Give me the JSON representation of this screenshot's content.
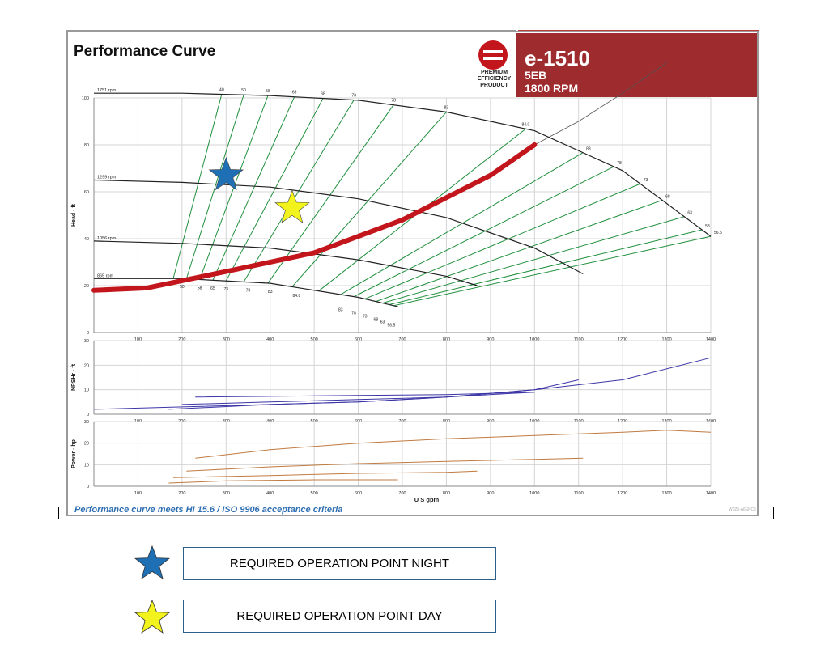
{
  "header": {
    "title": "Performance Curve",
    "model": "e-1510",
    "size": "5EB",
    "speed": "1800 RPM",
    "logo_text": [
      "PREMIUM",
      "EFFICIENCY",
      "PRODUCT"
    ],
    "brand_color": "#9e2b2e"
  },
  "footer": {
    "note": "Performance curve meets HI 15.6 / ISO 9906 acceptance criteria",
    "code": "W025-A6EPC5"
  },
  "legend": {
    "items": [
      {
        "label": "REQUIRED OPERATION POINT NIGHT",
        "icon": "star-icon",
        "color": "#1f6fb5"
      },
      {
        "label": "REQUIRED OPERATION POINT DAY",
        "icon": "star-icon",
        "color": "#f2f21c"
      }
    ]
  },
  "chart_data": [
    {
      "type": "line",
      "panel": "head",
      "ylabel": "Head - ft",
      "xlim": [
        0,
        1400
      ],
      "ylim": [
        0,
        100
      ],
      "xticks": [
        100,
        200,
        300,
        400,
        500,
        600,
        700,
        800,
        900,
        1000,
        1100,
        1200,
        1300,
        1400
      ],
      "yticks": [
        0,
        20,
        40,
        60,
        80,
        100
      ],
      "grid": true,
      "speed_curves": [
        {
          "name": "1751 rpm",
          "x": [
            0,
            200,
            400,
            600,
            800,
            1000,
            1200,
            1400
          ],
          "y": [
            102,
            102,
            101,
            99,
            94,
            86,
            69,
            41
          ]
        },
        {
          "name": "1299 rpm",
          "x": [
            0,
            200,
            400,
            600,
            800,
            1000,
            1110
          ],
          "y": [
            65,
            64,
            62,
            57,
            49,
            36,
            25
          ]
        },
        {
          "name": "1056 rpm",
          "x": [
            0,
            200,
            400,
            600,
            800,
            870
          ],
          "y": [
            39,
            38,
            36,
            31,
            24,
            20
          ]
        },
        {
          "name": "865 rpm",
          "x": [
            0,
            200,
            400,
            600,
            690
          ],
          "y": [
            23,
            23,
            21,
            15,
            11
          ]
        }
      ],
      "efficiency_labels_top": [
        "40",
        "50",
        "58",
        "63",
        "68",
        "73",
        "78",
        "83",
        "84.0"
      ],
      "efficiency_labels_right": [
        "83",
        "78",
        "73",
        "68",
        "63",
        "58",
        "56.5"
      ],
      "efficiency_labels_bottom": [
        "50",
        "58",
        "65",
        "73",
        "78",
        "83",
        "84.8",
        "83",
        "78",
        "73",
        "68",
        "63",
        "56.5"
      ],
      "system_curve": {
        "x": [
          0,
          120,
          300,
          500,
          700,
          900,
          1000
        ],
        "y": [
          18,
          19,
          26,
          34,
          48,
          67,
          80
        ]
      },
      "extension_curve": {
        "x": [
          1000,
          1100,
          1200,
          1300
        ],
        "y": [
          80,
          90,
          102,
          115
        ]
      },
      "markers": [
        {
          "name": "REQUIRED OPERATION POINT NIGHT",
          "x": 300,
          "y": 67,
          "color": "#1f6fb5"
        },
        {
          "name": "REQUIRED OPERATION POINT DAY",
          "x": 450,
          "y": 53,
          "color": "#f2f21c"
        }
      ],
      "colors": {
        "speed": "#222222",
        "efficiency": "#1f8f3c",
        "system": "#c3161c",
        "grid": "#d4d4d4"
      }
    },
    {
      "type": "line",
      "panel": "npsh",
      "ylabel": "NPSHr - ft",
      "xlim": [
        0,
        1400
      ],
      "ylim": [
        0,
        30
      ],
      "yticks": [
        0,
        10,
        20,
        30
      ],
      "xticks": [
        100,
        200,
        300,
        400,
        500,
        600,
        700,
        800,
        900,
        1000,
        1100,
        1200,
        1300,
        1400
      ],
      "series": [
        {
          "x": [
            1,
            200,
            400,
            600,
            800,
            1000,
            1200,
            1400
          ],
          "y": [
            2,
            3,
            4,
            5,
            7,
            10,
            14,
            23
          ]
        },
        {
          "x": [
            170,
            400,
            600,
            800,
            1000,
            1100
          ],
          "y": [
            2,
            4,
            5,
            7,
            10,
            14
          ]
        },
        {
          "x": [
            200,
            400,
            600,
            800,
            1000
          ],
          "y": [
            4,
            5,
            6,
            7,
            9
          ]
        },
        {
          "x": [
            230,
            500,
            800,
            1000
          ],
          "y": [
            7,
            7.5,
            8,
            9
          ]
        }
      ],
      "color": "#3b35a6"
    },
    {
      "type": "line",
      "panel": "power",
      "ylabel": "Power - hp",
      "xlabel": "U S gpm",
      "xlim": [
        0,
        1400
      ],
      "ylim": [
        0,
        30
      ],
      "yticks": [
        0,
        10,
        20,
        30
      ],
      "xticks": [
        100,
        200,
        300,
        400,
        500,
        600,
        700,
        800,
        900,
        1000,
        1100,
        1200,
        1300,
        1400
      ],
      "series": [
        {
          "x": [
            230,
            400,
            600,
            800,
            1000,
            1200,
            1300,
            1400
          ],
          "y": [
            13,
            17,
            20,
            22,
            23.5,
            25,
            26,
            25
          ]
        },
        {
          "x": [
            210,
            400,
            600,
            800,
            1000,
            1110
          ],
          "y": [
            7,
            9,
            10.5,
            11.5,
            12.5,
            13
          ]
        },
        {
          "x": [
            180,
            400,
            600,
            800,
            870
          ],
          "y": [
            4,
            5,
            6,
            6.5,
            7
          ]
        },
        {
          "x": [
            170,
            300,
            500,
            690
          ],
          "y": [
            1.5,
            2.5,
            3,
            3
          ]
        }
      ],
      "color": "#c07a40"
    }
  ]
}
